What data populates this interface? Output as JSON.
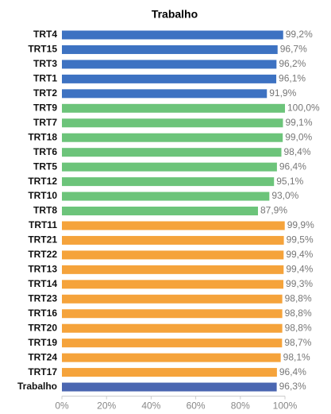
{
  "chart_data": {
    "type": "hbar",
    "title": "Trabalho",
    "categories": [
      "TRT4",
      "TRT15",
      "TRT3",
      "TRT1",
      "TRT2",
      "TRT9",
      "TRT7",
      "TRT18",
      "TRT6",
      "TRT5",
      "TRT12",
      "TRT10",
      "TRT8",
      "TRT11",
      "TRT21",
      "TRT22",
      "TRT13",
      "TRT14",
      "TRT23",
      "TRT16",
      "TRT20",
      "TRT19",
      "TRT24",
      "TRT17",
      "Trabalho"
    ],
    "values": [
      99.2,
      96.7,
      96.2,
      96.1,
      91.9,
      100.0,
      99.1,
      99.0,
      98.4,
      96.4,
      95.1,
      93.0,
      87.9,
      99.9,
      99.5,
      99.4,
      99.4,
      99.3,
      98.8,
      98.8,
      98.8,
      98.7,
      98.1,
      96.4,
      96.3
    ],
    "value_labels": [
      "99,2%",
      "96,7%",
      "96,2%",
      "96,1%",
      "91,9%",
      "100,0%",
      "99,1%",
      "99,0%",
      "98,4%",
      "96,4%",
      "95,1%",
      "93,0%",
      "87,9%",
      "99,9%",
      "99,5%",
      "99,4%",
      "99,4%",
      "99,3%",
      "98,8%",
      "98,8%",
      "98,8%",
      "98,7%",
      "98,1%",
      "96,4%",
      "96,3%"
    ],
    "colors": [
      "#3d72c2",
      "#3d72c2",
      "#3d72c2",
      "#3d72c2",
      "#3d72c2",
      "#6cc47a",
      "#6cc47a",
      "#6cc47a",
      "#6cc47a",
      "#6cc47a",
      "#6cc47a",
      "#6cc47a",
      "#6cc47a",
      "#f5a33b",
      "#f5a33b",
      "#f5a33b",
      "#f5a33b",
      "#f5a33b",
      "#f5a33b",
      "#f5a33b",
      "#f5a33b",
      "#f5a33b",
      "#f5a33b",
      "#f5a33b",
      "#4a66b1"
    ],
    "xlim": [
      0,
      100
    ],
    "xticks": [
      {
        "value": 0,
        "label": "0%"
      },
      {
        "value": 20,
        "label": "20%"
      },
      {
        "value": 40,
        "label": "40%"
      },
      {
        "value": 60,
        "label": "60%"
      },
      {
        "value": 80,
        "label": "80%"
      },
      {
        "value": 100,
        "label": "100%"
      }
    ]
  }
}
